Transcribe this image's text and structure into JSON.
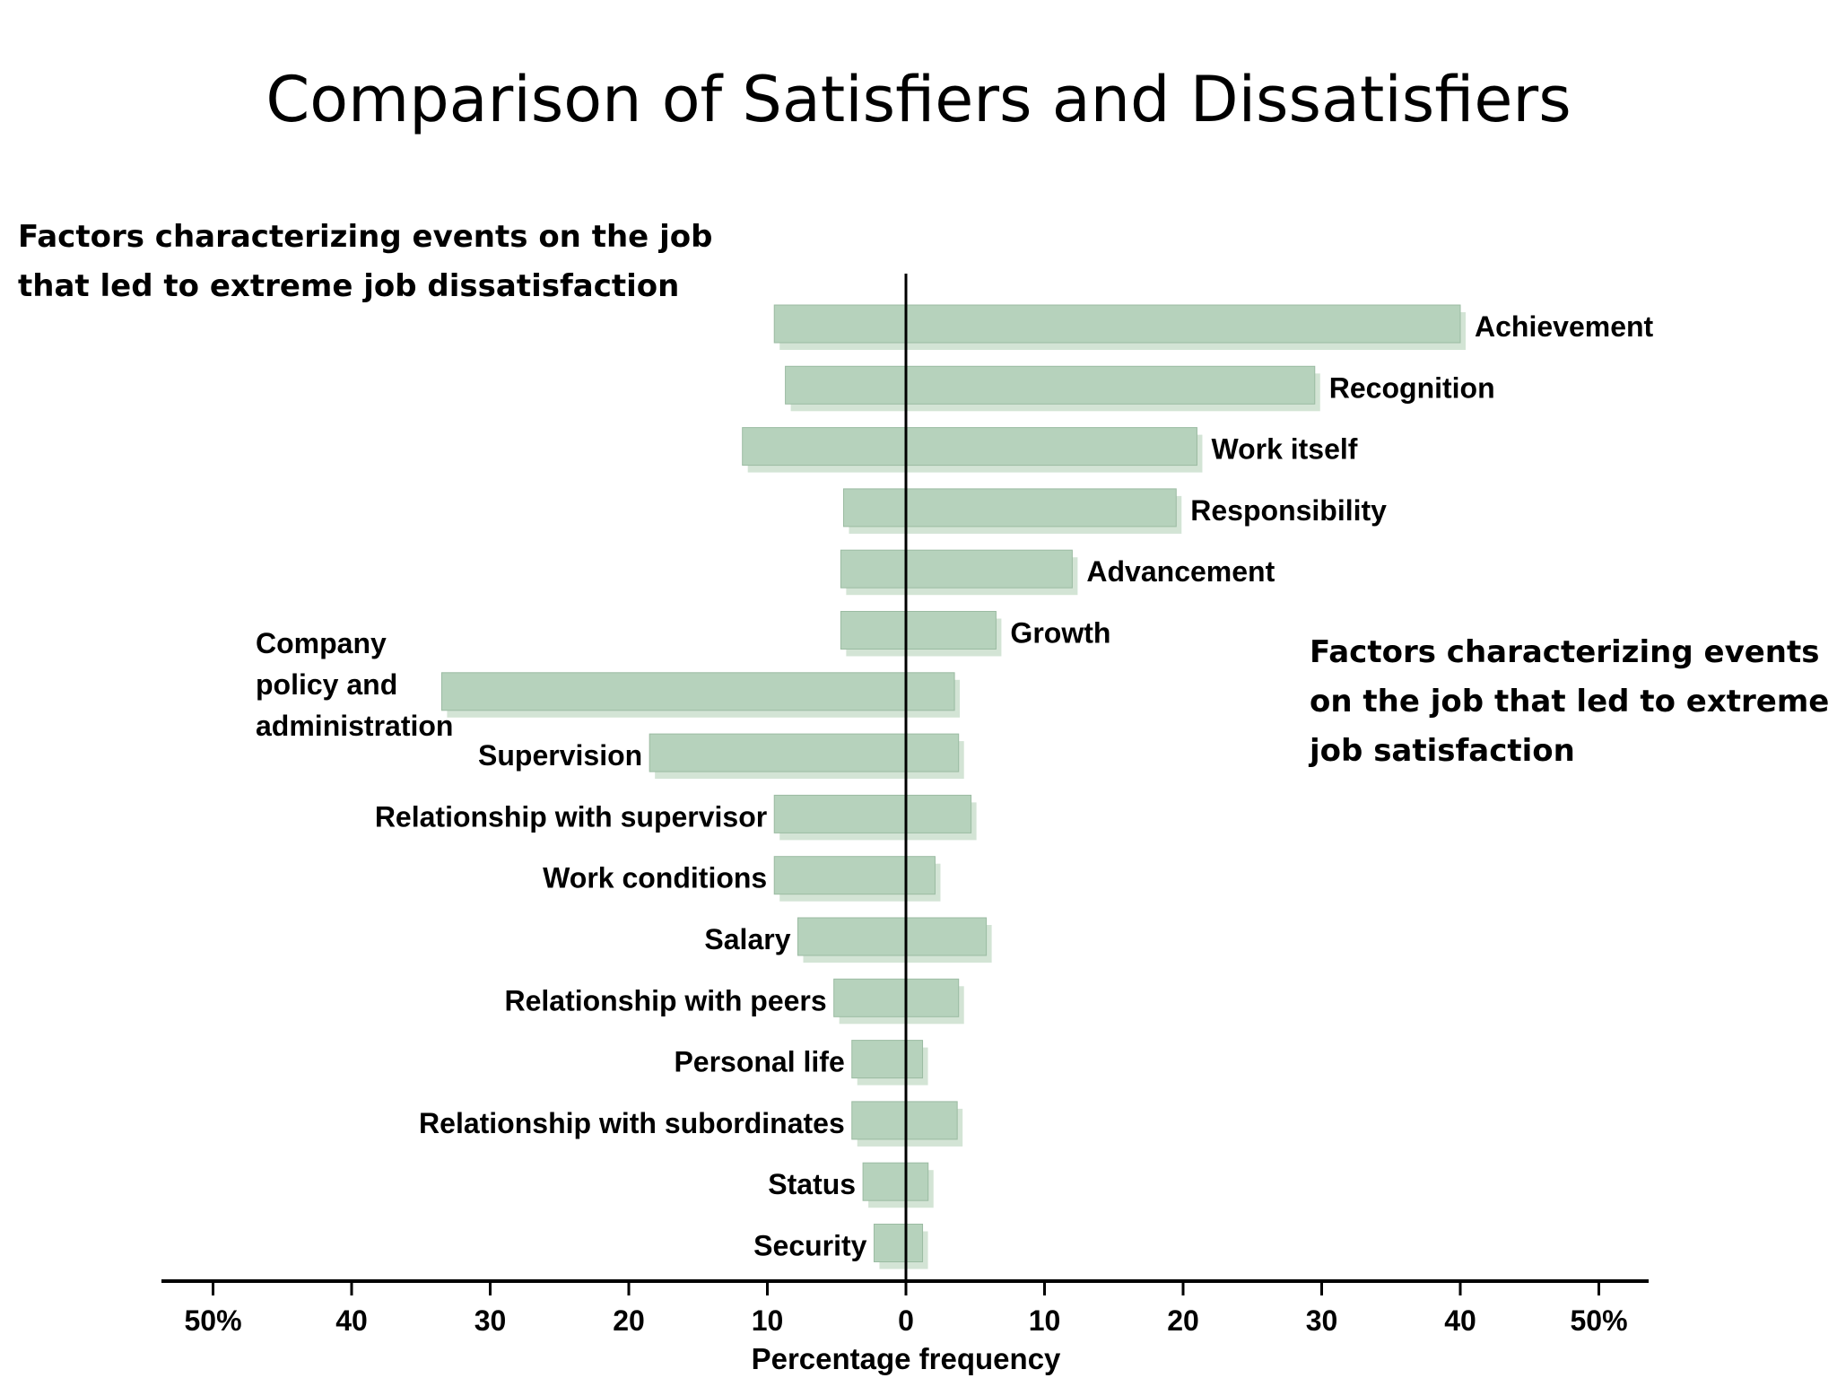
{
  "slide": {
    "title": "Comparison of Satisfiers and Dissatisfiers",
    "note_left": "Factors characterizing events on the job that led to extreme job dissatisfaction",
    "note_right": "Factors characterizing events on the job that led to extreme job satisfaction"
  },
  "chart_data": {
    "type": "bar",
    "orientation": "horizontal-diverging",
    "categories": [
      "Achievement",
      "Recognition",
      "Work itself",
      "Responsibility",
      "Advancement",
      "Growth",
      "Company policy and administration",
      "Supervision",
      "Relationship with supervisor",
      "Work conditions",
      "Salary",
      "Relationship with peers",
      "Personal life",
      "Relationship with subordinates",
      "Status",
      "Security"
    ],
    "series": [
      {
        "values": [
          -9.5,
          -8.7,
          -11.8,
          -4.5,
          -4.7,
          -4.7,
          -33.5,
          -18.5,
          -9.5,
          -9.5,
          -7.8,
          -5.2,
          -3.9,
          -3.9,
          -3.1,
          -2.3
        ]
      },
      {
        "values": [
          40,
          29.5,
          21,
          19.5,
          12,
          6.5,
          3.5,
          3.8,
          4.7,
          2.1,
          5.8,
          3.8,
          1.2,
          3.7,
          1.6,
          1.2
        ]
      }
    ],
    "xlabel": "Percentage frequency",
    "xlim": [
      -50,
      50
    ],
    "x_ticks": [
      -50,
      -40,
      -30,
      -20,
      -10,
      0,
      10,
      20,
      30,
      40,
      50
    ],
    "x_tick_labels": [
      "50%",
      "40",
      "30",
      "20",
      "10",
      "0",
      "10",
      "20",
      "30",
      "40",
      "50%"
    ],
    "bar_color": "#b6d2bc",
    "bar_shadow_color": "#d3e4d5",
    "grid": false
  }
}
